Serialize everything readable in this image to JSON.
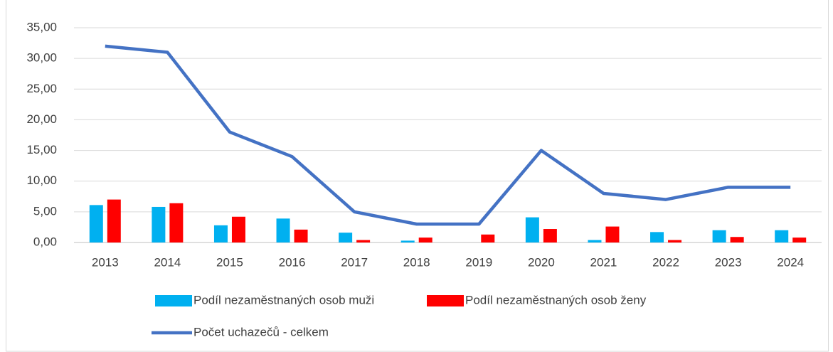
{
  "chart_data": {
    "type": "bar",
    "categories": [
      "2013",
      "2014",
      "2015",
      "2016",
      "2017",
      "2018",
      "2019",
      "2020",
      "2021",
      "2022",
      "2023",
      "2024"
    ],
    "series": [
      {
        "name": "Podíl nezaměstnaných osob muži",
        "type": "bar",
        "color": "#00b0f0",
        "values": [
          6.1,
          5.8,
          2.8,
          3.9,
          1.6,
          0.3,
          0,
          4.1,
          0.4,
          1.7,
          2.0,
          2.0
        ]
      },
      {
        "name": "Podíl nezaměstnaných osob ženy",
        "type": "bar",
        "color": "#ff0000",
        "values": [
          7.0,
          6.4,
          4.2,
          2.1,
          0.4,
          0.8,
          1.3,
          2.2,
          2.6,
          0.4,
          0.9,
          0.8
        ]
      },
      {
        "name": "Počet uchazečů - celkem",
        "type": "line",
        "color": "#4472c4",
        "values": [
          32,
          31,
          18,
          14,
          5,
          3,
          3,
          15,
          8,
          7,
          9,
          9
        ]
      }
    ],
    "ylim": [
      0,
      35
    ],
    "yticks": [
      {
        "value": 0,
        "label": "0,00"
      },
      {
        "value": 5,
        "label": "5,00"
      },
      {
        "value": 10,
        "label": "10,00"
      },
      {
        "value": 15,
        "label": "15,00"
      },
      {
        "value": 20,
        "label": "20,00"
      },
      {
        "value": 25,
        "label": "25,00"
      },
      {
        "value": 30,
        "label": "30,00"
      },
      {
        "value": 35,
        "label": "35,00"
      }
    ],
    "grid": true
  }
}
